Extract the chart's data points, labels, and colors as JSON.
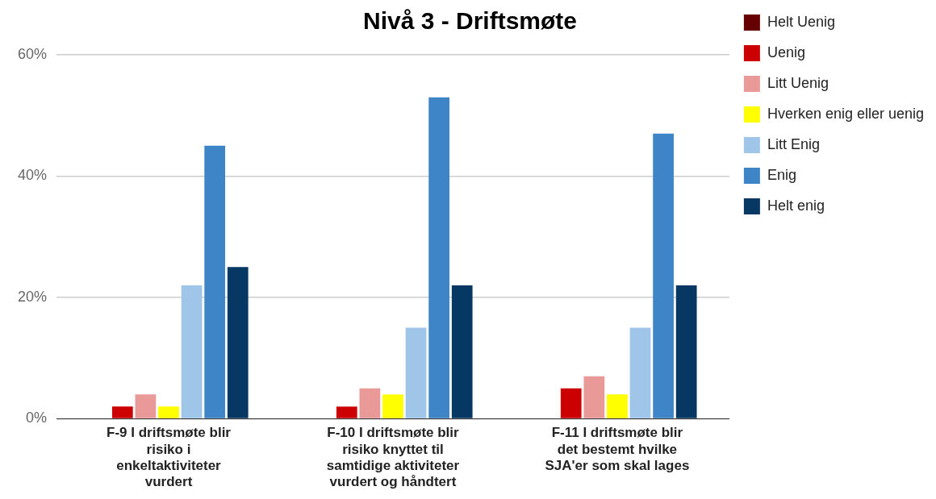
{
  "chart_data": {
    "type": "bar",
    "title": "Nivå 3 - Driftsmøte",
    "categories": [
      "F-9 I driftsmøte blir risiko i enkeltaktiviteter vurdert",
      "F-10 I driftsmøte blir risiko knyttet til samtidige aktiviteter vurdert og håndtert",
      "F-11 I driftsmøte blir det bestemt hvilke SJA'er som skal lages"
    ],
    "series": [
      {
        "name": "Helt Uenig",
        "color": "#660000",
        "values": [
          0,
          0,
          0
        ]
      },
      {
        "name": "Uenig",
        "color": "#cc0000",
        "values": [
          2,
          2,
          5
        ]
      },
      {
        "name": "Litt Uenig",
        "color": "#ea9999",
        "values": [
          4,
          5,
          7
        ]
      },
      {
        "name": "Hverken enig eller uenig",
        "color": "#ffff00",
        "values": [
          2,
          4,
          4
        ]
      },
      {
        "name": "Litt Enig",
        "color": "#9fc5e8",
        "values": [
          22,
          15,
          15
        ]
      },
      {
        "name": "Enig",
        "color": "#3d85c6",
        "values": [
          45,
          53,
          47
        ]
      },
      {
        "name": "Helt enig",
        "color": "#073763",
        "values": [
          25,
          22,
          22
        ]
      }
    ],
    "ylim": [
      0,
      60
    ],
    "yticks": [
      {
        "value": 0,
        "label": "0%"
      },
      {
        "value": 20,
        "label": "20%"
      },
      {
        "value": 40,
        "label": "40%"
      },
      {
        "value": 60,
        "label": "60%"
      }
    ],
    "grid": "y",
    "legend": "right"
  }
}
